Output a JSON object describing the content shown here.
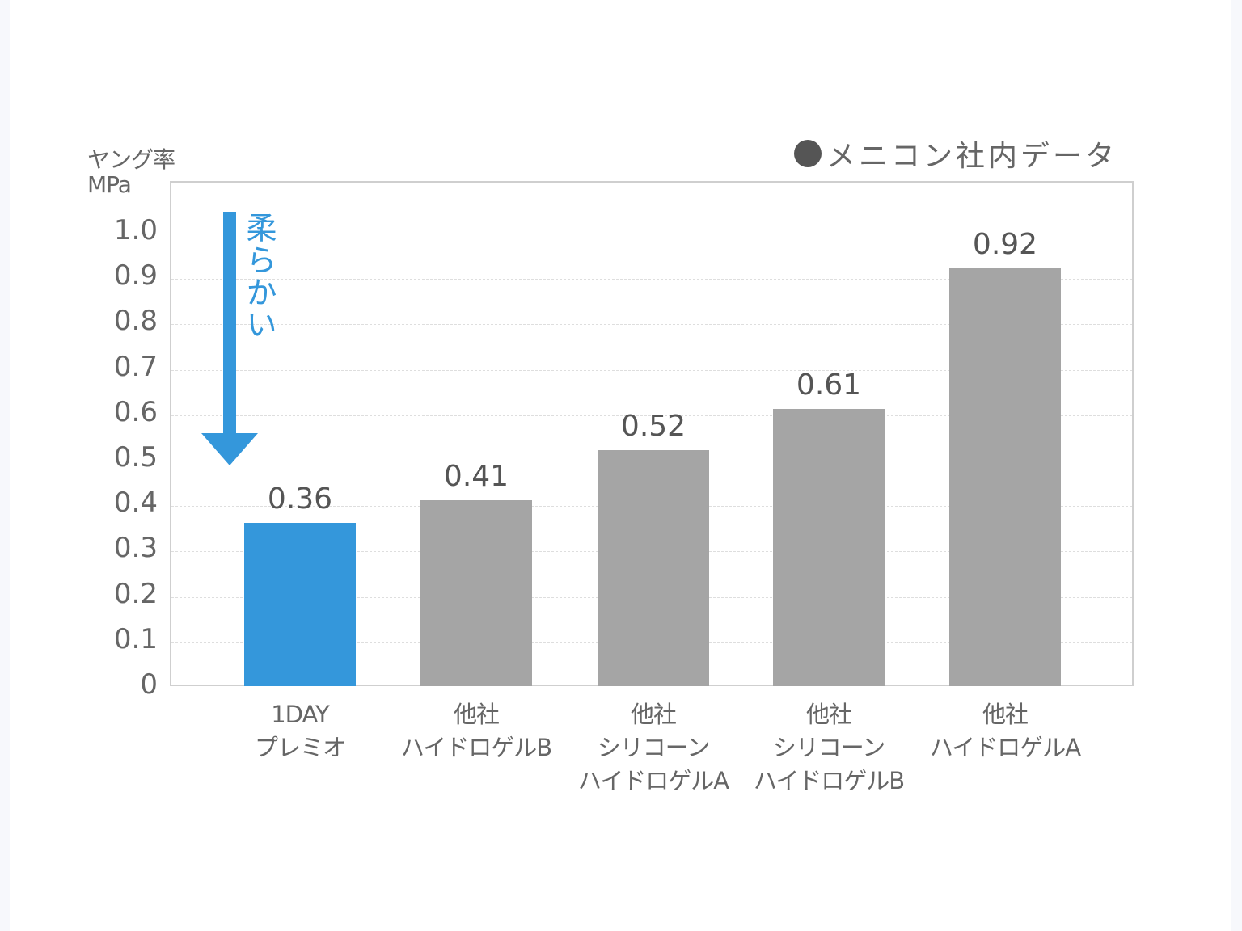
{
  "chart_data": {
    "type": "bar",
    "title": "",
    "ylabel": "ヤング率 MPa",
    "ylabel_lines": [
      "ヤング率",
      "MPa"
    ],
    "xlabel": "",
    "ylim": [
      0,
      1.0
    ],
    "yticks": [
      "0",
      "0.1",
      "0.2",
      "0.3",
      "0.4",
      "0.5",
      "0.6",
      "0.7",
      "0.8",
      "0.9",
      "1.0"
    ],
    "grid": true,
    "legend": {
      "position": "top-right",
      "text": "●メニコン社内データ"
    },
    "annotation": {
      "text": "柔らかい",
      "arrow": "down",
      "color": "#3497db"
    },
    "categories": [
      "1DAY プレミオ",
      "他社 ハイドロゲルB",
      "他社 シリコーン ハイドロゲルA",
      "他社 シリコーン ハイドロゲルB",
      "他社 ハイドロゲルA"
    ],
    "values": [
      0.36,
      0.41,
      0.52,
      0.61,
      0.92
    ],
    "value_labels": [
      "0.36",
      "0.41",
      "0.52",
      "0.61",
      "0.92"
    ],
    "colors": [
      "#3497db",
      "#a5a5a5",
      "#a5a5a5",
      "#a5a5a5",
      "#a5a5a5"
    ]
  },
  "header": {
    "ylabel_jp": "ヤング率",
    "ylabel_unit": "MPa",
    "legend_text": "メニコン社内データ"
  },
  "annotation": {
    "text": "柔らかい"
  },
  "bars": [
    {
      "value": "0.36",
      "label_lines": [
        "1DAY",
        "プレミオ"
      ]
    },
    {
      "value": "0.41",
      "label_lines": [
        "他社",
        "ハイドロゲルB"
      ]
    },
    {
      "value": "0.52",
      "label_lines": [
        "他社",
        "シリコーン",
        "ハイドロゲルA"
      ]
    },
    {
      "value": "0.61",
      "label_lines": [
        "他社",
        "シリコーン",
        "ハイドロゲルB"
      ]
    },
    {
      "value": "0.92",
      "label_lines": [
        "他社",
        "ハイドロゲルA"
      ]
    }
  ],
  "yticks": [
    "0",
    "0.1",
    "0.2",
    "0.3",
    "0.4",
    "0.5",
    "0.6",
    "0.7",
    "0.8",
    "0.9",
    "1.0"
  ]
}
